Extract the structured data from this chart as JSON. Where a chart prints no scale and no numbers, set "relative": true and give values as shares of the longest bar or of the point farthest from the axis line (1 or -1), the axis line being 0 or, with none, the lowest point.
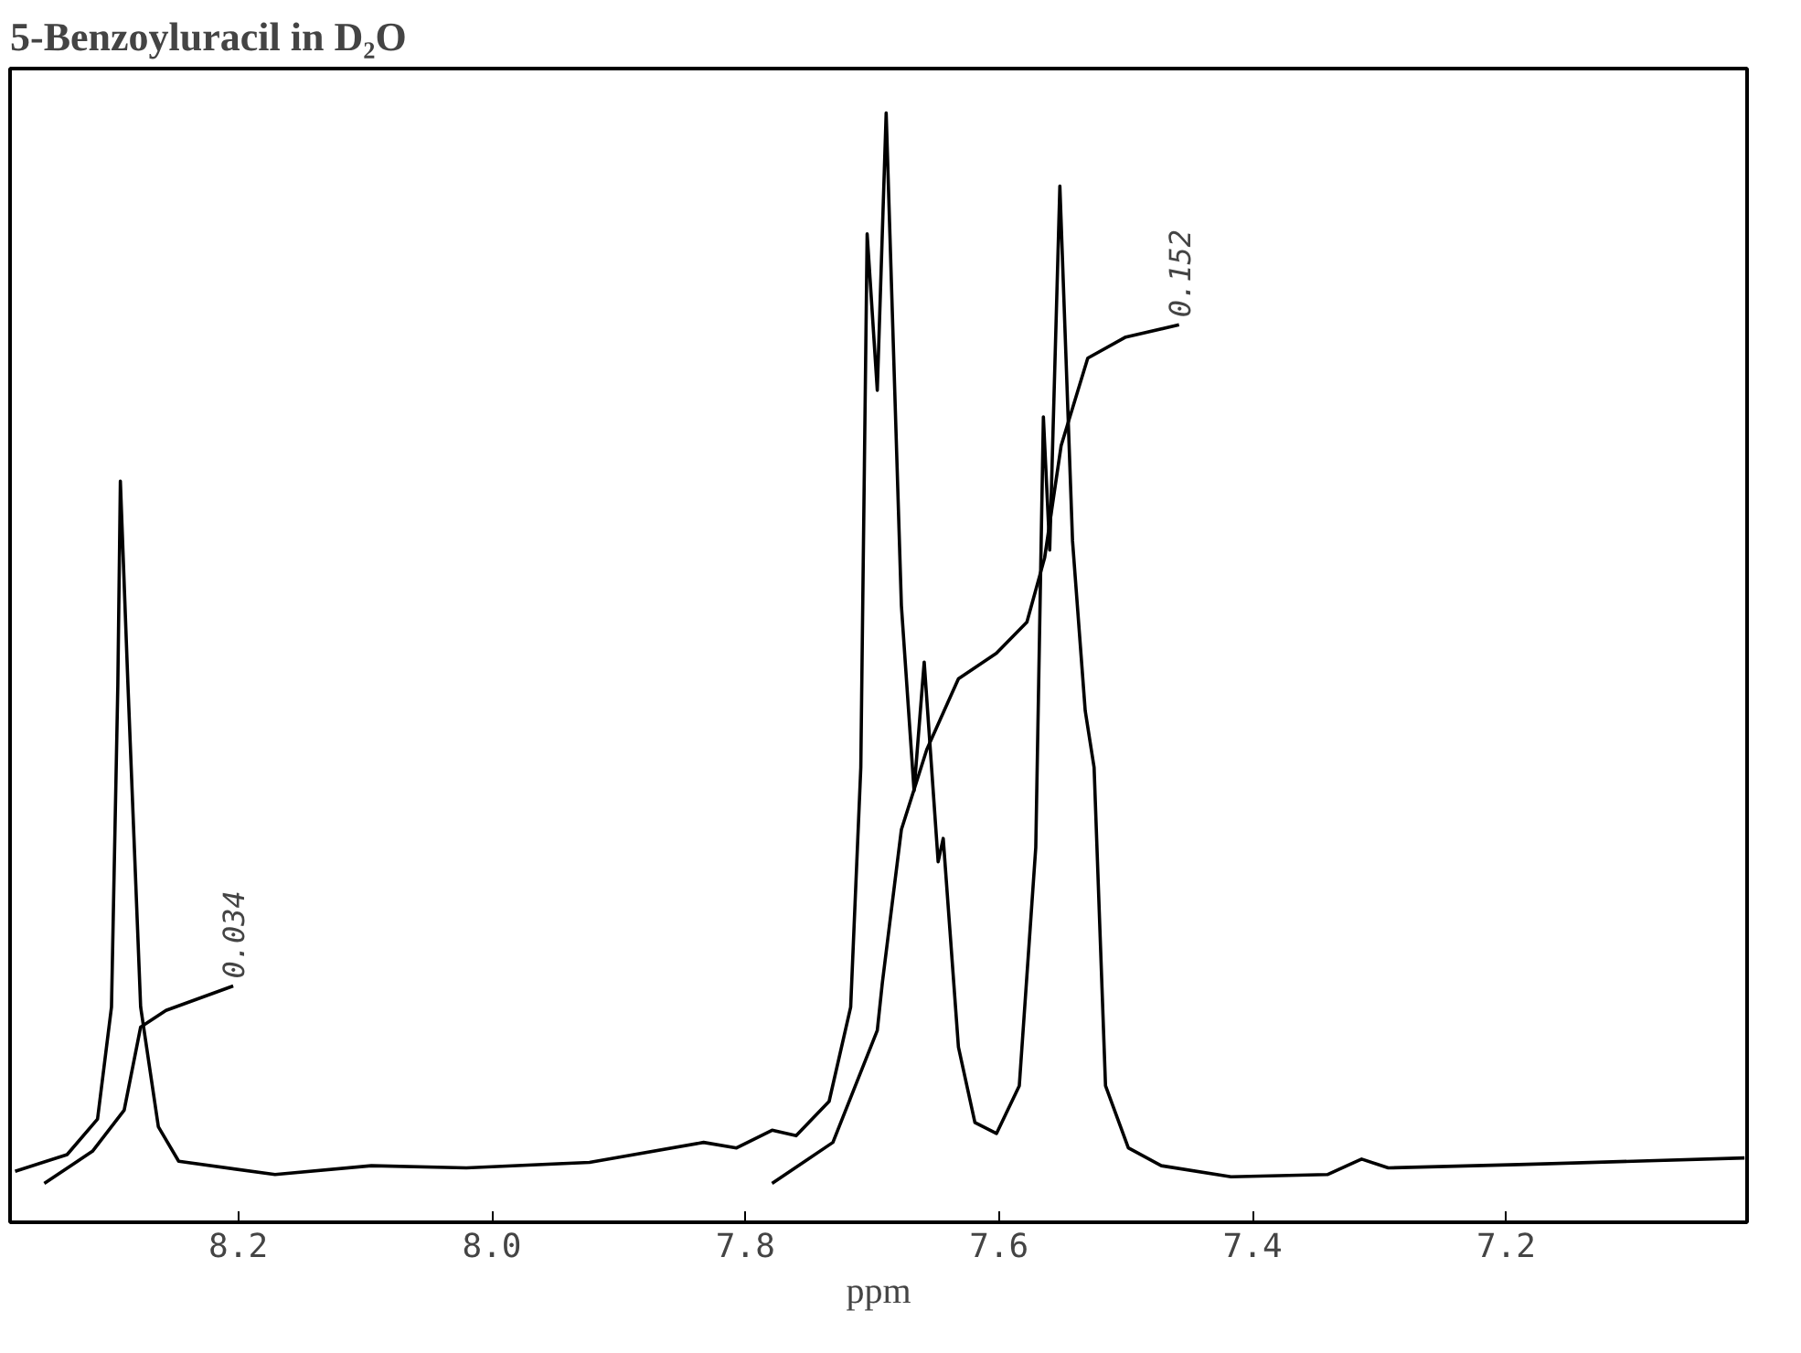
{
  "chart_data": {
    "type": "line",
    "title": "5-Benzoyluracil in D₂O",
    "xlabel": "ppm",
    "relative": true,
    "grid": false,
    "marker": "none",
    "line_style": "solid",
    "xlim": [
      8.38,
      7.01
    ],
    "xticks": [
      {
        "value": 8.2,
        "label": "8.2"
      },
      {
        "value": 8.0,
        "label": "8.0"
      },
      {
        "value": 7.8,
        "label": "7.8"
      },
      {
        "value": 7.6,
        "label": "7.6"
      },
      {
        "value": 7.4,
        "label": "7.4"
      },
      {
        "value": 7.2,
        "label": "7.2"
      }
    ],
    "series": [
      {
        "color": "#000000",
        "x": [
          8.376,
          8.335,
          8.311,
          8.3,
          8.295,
          8.293,
          8.287,
          8.277,
          8.263,
          8.247,
          8.171,
          8.095,
          8.02,
          7.923,
          7.833,
          7.807,
          7.779,
          7.76,
          7.734,
          7.717,
          7.709,
          7.704,
          7.696,
          7.689,
          7.677,
          7.667,
          7.659,
          7.648,
          7.644,
          7.632,
          7.619,
          7.602,
          7.584,
          7.571,
          7.565,
          7.56,
          7.552,
          7.542,
          7.532,
          7.525,
          7.516,
          7.498,
          7.472,
          7.417,
          7.341,
          7.314,
          7.293,
          7.19,
          7.012
        ],
        "values": [
          0.046,
          0.061,
          0.093,
          0.194,
          0.484,
          0.668,
          0.484,
          0.194,
          0.086,
          0.055,
          0.043,
          0.051,
          0.049,
          0.054,
          0.072,
          0.067,
          0.083,
          0.078,
          0.109,
          0.194,
          0.41,
          0.891,
          0.75,
          1.0,
          0.556,
          0.389,
          0.505,
          0.325,
          0.346,
          0.158,
          0.09,
          0.08,
          0.123,
          0.338,
          0.726,
          0.606,
          0.934,
          0.614,
          0.461,
          0.41,
          0.123,
          0.067,
          0.051,
          0.041,
          0.043,
          0.057,
          0.049,
          0.052,
          0.058
        ]
      },
      {
        "color": "#000000",
        "x": [
          8.353,
          8.315,
          8.29,
          8.277,
          8.257,
          8.204
        ],
        "values": [
          0.035,
          0.064,
          0.101,
          0.176,
          0.191,
          0.213
        ]
      },
      {
        "color": "#000000",
        "x": [
          7.779,
          7.731,
          7.696,
          7.692,
          7.677,
          7.657,
          7.632,
          7.602,
          7.578,
          7.564,
          7.551,
          7.53,
          7.5,
          7.458
        ],
        "values": [
          0.035,
          0.072,
          0.173,
          0.216,
          0.354,
          0.426,
          0.49,
          0.513,
          0.541,
          0.599,
          0.7,
          0.779,
          0.798,
          0.809
        ]
      }
    ],
    "annotations": [
      "0.034",
      "0.152"
    ]
  }
}
